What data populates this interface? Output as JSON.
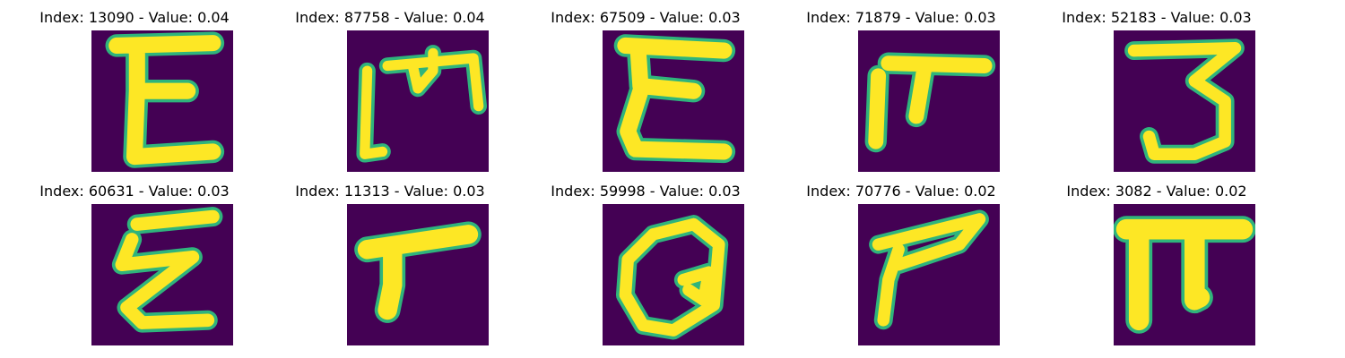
{
  "colors": {
    "background": "#440154",
    "foreground": "#fde725",
    "edge": "#2fb47c"
  },
  "tiles": [
    {
      "title": "Index: 13090 - Value: 0.04",
      "glyph": "E-upright"
    },
    {
      "title": "Index: 87758 - Value: 0.04",
      "glyph": "M-boxed"
    },
    {
      "title": "Index: 67509 - Value: 0.03",
      "glyph": "E-wavy"
    },
    {
      "title": "Index: 71879 - Value: 0.03",
      "glyph": "pi-slanted"
    },
    {
      "title": "Index: 52183 - Value: 0.03",
      "glyph": "three"
    },
    {
      "title": "Index: 60631 - Value: 0.03",
      "glyph": "E-zigzag"
    },
    {
      "title": "Index: 11313 - Value: 0.03",
      "glyph": "r-stroke"
    },
    {
      "title": "Index: 59998 - Value: 0.03",
      "glyph": "loop-Q"
    },
    {
      "title": "Index: 70776 - Value: 0.02",
      "glyph": "p-angle"
    },
    {
      "title": "Index: 3082 - Value: 0.02",
      "glyph": "pi-blocky"
    }
  ]
}
